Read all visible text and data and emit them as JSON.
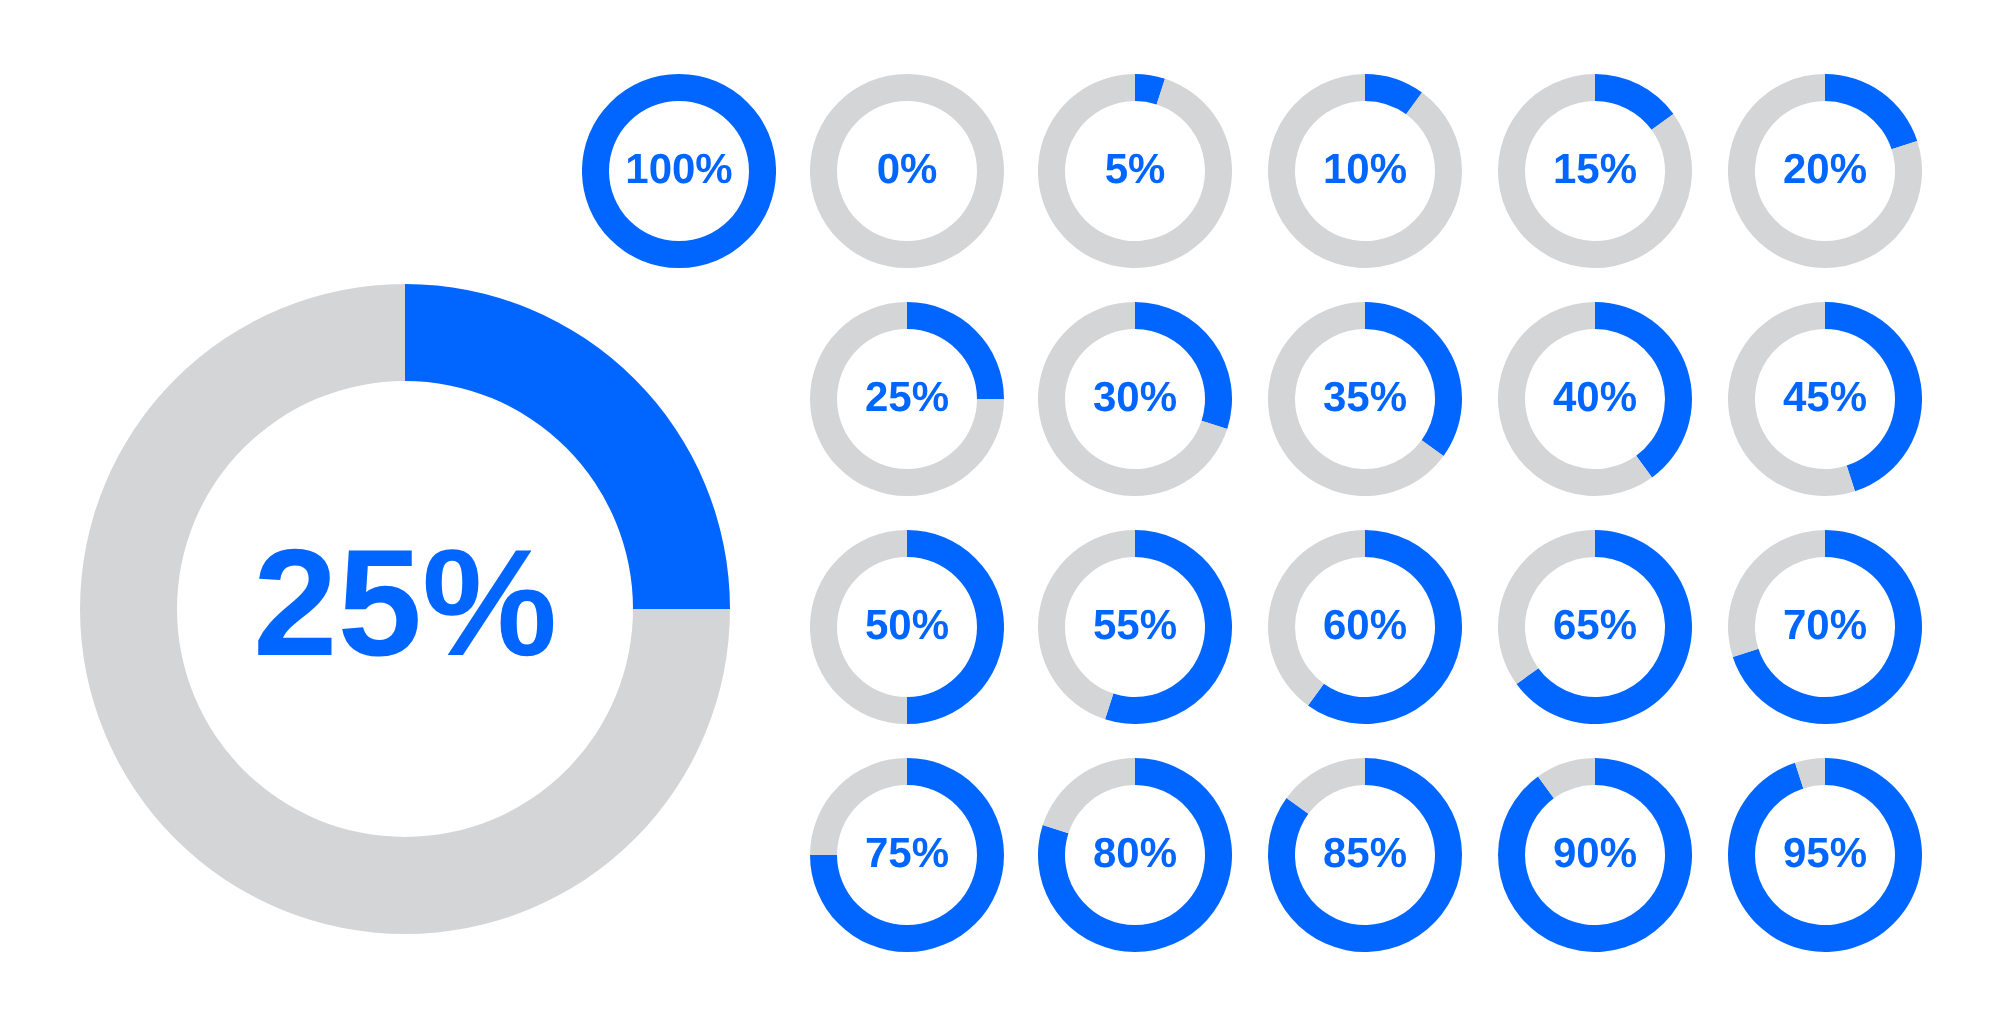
{
  "chart_data": [
    {
      "type": "donut",
      "categories": [
        null,
        null
      ],
      "values": [
        25,
        75
      ],
      "colors": [
        "#0066ff",
        "#d4d5d7"
      ],
      "annotations": [
        "25%"
      ]
    },
    {
      "type": "donut",
      "categories": [
        null,
        null
      ],
      "values": [
        100,
        0
      ],
      "colors": [
        "#0066ff",
        "#d4d5d7"
      ],
      "annotations": [
        "100%"
      ]
    },
    {
      "type": "donut",
      "categories": [
        null,
        null
      ],
      "values": [
        0,
        100
      ],
      "colors": [
        "#0066ff",
        "#d4d5d7"
      ],
      "annotations": [
        "0%"
      ]
    },
    {
      "type": "donut",
      "categories": [
        null,
        null
      ],
      "values": [
        5,
        95
      ],
      "colors": [
        "#0066ff",
        "#d4d5d7"
      ],
      "annotations": [
        "5%"
      ]
    },
    {
      "type": "donut",
      "categories": [
        null,
        null
      ],
      "values": [
        10,
        90
      ],
      "colors": [
        "#0066ff",
        "#d4d5d7"
      ],
      "annotations": [
        "10%"
      ]
    },
    {
      "type": "donut",
      "categories": [
        null,
        null
      ],
      "values": [
        15,
        85
      ],
      "colors": [
        "#0066ff",
        "#d4d5d7"
      ],
      "annotations": [
        "15%"
      ]
    },
    {
      "type": "donut",
      "categories": [
        null,
        null
      ],
      "values": [
        20,
        80
      ],
      "colors": [
        "#0066ff",
        "#d4d5d7"
      ],
      "annotations": [
        "20%"
      ]
    },
    {
      "type": "donut",
      "categories": [
        null,
        null
      ],
      "values": [
        25,
        75
      ],
      "colors": [
        "#0066ff",
        "#d4d5d7"
      ],
      "annotations": [
        "25%"
      ]
    },
    {
      "type": "donut",
      "categories": [
        null,
        null
      ],
      "values": [
        30,
        70
      ],
      "colors": [
        "#0066ff",
        "#d4d5d7"
      ],
      "annotations": [
        "30%"
      ]
    },
    {
      "type": "donut",
      "categories": [
        null,
        null
      ],
      "values": [
        35,
        65
      ],
      "colors": [
        "#0066ff",
        "#d4d5d7"
      ],
      "annotations": [
        "35%"
      ]
    },
    {
      "type": "donut",
      "categories": [
        null,
        null
      ],
      "values": [
        40,
        60
      ],
      "colors": [
        "#0066ff",
        "#d4d5d7"
      ],
      "annotations": [
        "40%"
      ]
    },
    {
      "type": "donut",
      "categories": [
        null,
        null
      ],
      "values": [
        45,
        55
      ],
      "colors": [
        "#0066ff",
        "#d4d5d7"
      ],
      "annotations": [
        "45%"
      ]
    },
    {
      "type": "donut",
      "categories": [
        null,
        null
      ],
      "values": [
        50,
        50
      ],
      "colors": [
        "#0066ff",
        "#d4d5d7"
      ],
      "annotations": [
        "50%"
      ]
    },
    {
      "type": "donut",
      "categories": [
        null,
        null
      ],
      "values": [
        55,
        45
      ],
      "colors": [
        "#0066ff",
        "#d4d5d7"
      ],
      "annotations": [
        "55%"
      ]
    },
    {
      "type": "donut",
      "categories": [
        null,
        null
      ],
      "values": [
        60,
        40
      ],
      "colors": [
        "#0066ff",
        "#d4d5d7"
      ],
      "annotations": [
        "60%"
      ]
    },
    {
      "type": "donut",
      "categories": [
        null,
        null
      ],
      "values": [
        65,
        35
      ],
      "colors": [
        "#0066ff",
        "#d4d5d7"
      ],
      "annotations": [
        "65%"
      ]
    },
    {
      "type": "donut",
      "categories": [
        null,
        null
      ],
      "values": [
        70,
        30
      ],
      "colors": [
        "#0066ff",
        "#d4d5d7"
      ],
      "annotations": [
        "70%"
      ]
    },
    {
      "type": "donut",
      "categories": [
        null,
        null
      ],
      "values": [
        75,
        25
      ],
      "colors": [
        "#0066ff",
        "#d4d5d7"
      ],
      "annotations": [
        "75%"
      ]
    },
    {
      "type": "donut",
      "categories": [
        null,
        null
      ],
      "values": [
        80,
        20
      ],
      "colors": [
        "#0066ff",
        "#d4d5d7"
      ],
      "annotations": [
        "80%"
      ]
    },
    {
      "type": "donut",
      "categories": [
        null,
        null
      ],
      "values": [
        85,
        15
      ],
      "colors": [
        "#0066ff",
        "#d4d5d7"
      ],
      "annotations": [
        "85%"
      ]
    },
    {
      "type": "donut",
      "categories": [
        null,
        null
      ],
      "values": [
        90,
        10
      ],
      "colors": [
        "#0066ff",
        "#d4d5d7"
      ],
      "annotations": [
        "90%"
      ]
    },
    {
      "type": "donut",
      "categories": [
        null,
        null
      ],
      "values": [
        95,
        5
      ],
      "colors": [
        "#0066ff",
        "#d4d5d7"
      ],
      "annotations": [
        "95%"
      ]
    }
  ]
}
